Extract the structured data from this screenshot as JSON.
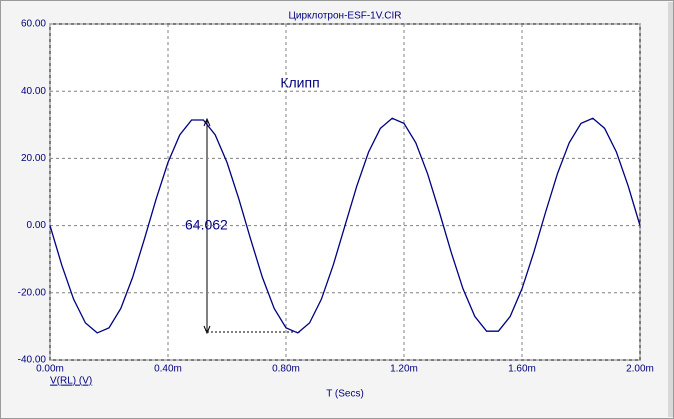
{
  "chart_data": {
    "type": "line",
    "title": "Цирклотрон-ESF-1V.CIR",
    "x_label": "T (Secs)",
    "y_label": "V(RL) (V)",
    "annotation": "Клипп",
    "measurement_label": "64.062",
    "grid": true,
    "xlim": [
      0,
      0.002
    ],
    "ylim": [
      -40,
      60
    ],
    "xticks": [
      {
        "value": 0,
        "label": "0.00m"
      },
      {
        "value": 0.0004,
        "label": "0.40m"
      },
      {
        "value": 0.0008,
        "label": "0.80m"
      },
      {
        "value": 0.0012,
        "label": "1.20m"
      },
      {
        "value": 0.0016,
        "label": "1.60m"
      },
      {
        "value": 0.002,
        "label": "2.00m"
      }
    ],
    "yticks": [
      {
        "value": -40,
        "label": "-40.00"
      },
      {
        "value": -20,
        "label": "-20.00"
      },
      {
        "value": 0,
        "label": "0.00"
      },
      {
        "value": 20,
        "label": "20.00"
      },
      {
        "value": 40,
        "label": "40.00"
      },
      {
        "value": 60,
        "label": "60.00"
      }
    ],
    "x": [
      0,
      4e-05,
      8e-05,
      0.00012,
      0.00016,
      0.0002,
      0.00024,
      0.00028,
      0.00032,
      0.00036,
      0.0004,
      0.00044,
      0.00048,
      0.00052,
      0.00056,
      0.0006,
      0.00064,
      0.00068,
      0.00072,
      0.00076,
      0.0008,
      0.00084,
      0.00088,
      0.00092,
      0.00096,
      0.001,
      0.00104,
      0.00108,
      0.00112,
      0.00116,
      0.0012,
      0.00124,
      0.00128,
      0.00132,
      0.00136,
      0.0014,
      0.00144,
      0.00148,
      0.00152,
      0.00156,
      0.0016,
      0.00164,
      0.00168,
      0.00172,
      0.00176,
      0.0018,
      0.00184,
      0.00188,
      0.00192,
      0.00196,
      0.002
    ],
    "series": [
      {
        "color": "#000080",
        "values": [
          0,
          -11.78,
          -21.9,
          -28.95,
          -31.94,
          -30.43,
          -24.66,
          -15.42,
          -4.01,
          7.96,
          18.81,
          27.02,
          31.43,
          31.43,
          27.02,
          18.81,
          7.96,
          -4.01,
          -15.42,
          -24.66,
          -30.43,
          -31.94,
          -28.95,
          -21.9,
          -11.78,
          0,
          11.78,
          21.9,
          28.95,
          31.94,
          30.43,
          24.66,
          15.42,
          4.01,
          -7.96,
          -18.81,
          -27.02,
          -31.43,
          -31.43,
          -27.02,
          -18.81,
          -7.96,
          4.01,
          15.42,
          24.66,
          30.43,
          31.94,
          28.95,
          21.9,
          11.78,
          0
        ]
      }
    ]
  }
}
